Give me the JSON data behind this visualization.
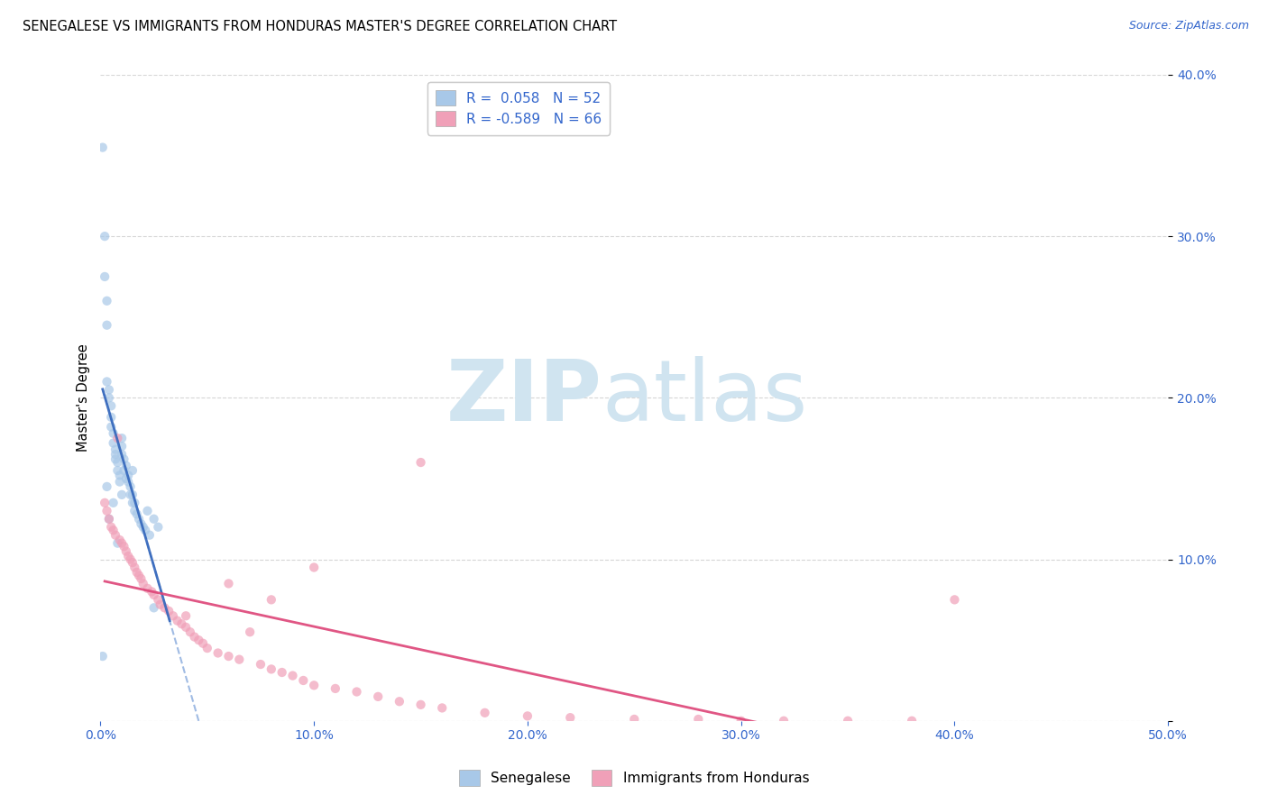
{
  "title": "SENEGALESE VS IMMIGRANTS FROM HONDURAS MASTER'S DEGREE CORRELATION CHART",
  "source": "Source: ZipAtlas.com",
  "ylabel": "Master's Degree",
  "xlim": [
    0.0,
    0.5
  ],
  "ylim": [
    0.0,
    0.4
  ],
  "xticks": [
    0.0,
    0.1,
    0.2,
    0.3,
    0.4,
    0.5
  ],
  "yticks": [
    0.0,
    0.1,
    0.2,
    0.3,
    0.4
  ],
  "legend_labels": [
    "Senegalese",
    "Immigrants from Honduras"
  ],
  "R_blue": 0.058,
  "N_blue": 52,
  "R_pink": -0.589,
  "N_pink": 66,
  "blue_color": "#a8c8e8",
  "pink_color": "#f0a0b8",
  "blue_line_color": "#3366bb",
  "blue_dash_color": "#88aadd",
  "pink_line_color": "#dd4477",
  "scatter_alpha": 0.7,
  "scatter_size": 55,
  "watermark_zip": "ZIP",
  "watermark_atlas": "atlas",
  "watermark_color": "#d0e4f0",
  "blue_x": [
    0.001,
    0.001,
    0.002,
    0.002,
    0.003,
    0.003,
    0.003,
    0.004,
    0.004,
    0.005,
    0.005,
    0.005,
    0.006,
    0.006,
    0.007,
    0.007,
    0.007,
    0.008,
    0.008,
    0.009,
    0.009,
    0.01,
    0.01,
    0.01,
    0.011,
    0.011,
    0.012,
    0.012,
    0.013,
    0.013,
    0.014,
    0.014,
    0.015,
    0.015,
    0.016,
    0.016,
    0.017,
    0.018,
    0.019,
    0.02,
    0.021,
    0.022,
    0.023,
    0.025,
    0.027,
    0.003,
    0.004,
    0.006,
    0.008,
    0.01,
    0.015,
    0.025
  ],
  "blue_y": [
    0.355,
    0.04,
    0.3,
    0.275,
    0.26,
    0.245,
    0.21,
    0.205,
    0.2,
    0.195,
    0.188,
    0.182,
    0.178,
    0.172,
    0.168,
    0.165,
    0.162,
    0.16,
    0.155,
    0.152,
    0.148,
    0.17,
    0.165,
    0.14,
    0.162,
    0.155,
    0.158,
    0.15,
    0.152,
    0.148,
    0.145,
    0.14,
    0.14,
    0.135,
    0.135,
    0.13,
    0.128,
    0.125,
    0.122,
    0.12,
    0.118,
    0.13,
    0.115,
    0.125,
    0.12,
    0.145,
    0.125,
    0.135,
    0.11,
    0.175,
    0.155,
    0.07
  ],
  "pink_x": [
    0.002,
    0.003,
    0.004,
    0.005,
    0.006,
    0.007,
    0.008,
    0.009,
    0.01,
    0.011,
    0.012,
    0.013,
    0.014,
    0.015,
    0.016,
    0.017,
    0.018,
    0.019,
    0.02,
    0.022,
    0.024,
    0.025,
    0.027,
    0.028,
    0.03,
    0.032,
    0.034,
    0.036,
    0.038,
    0.04,
    0.042,
    0.044,
    0.046,
    0.048,
    0.05,
    0.055,
    0.06,
    0.065,
    0.07,
    0.075,
    0.08,
    0.085,
    0.09,
    0.095,
    0.1,
    0.11,
    0.12,
    0.13,
    0.14,
    0.15,
    0.16,
    0.18,
    0.2,
    0.22,
    0.25,
    0.28,
    0.3,
    0.32,
    0.35,
    0.38,
    0.04,
    0.06,
    0.08,
    0.1,
    0.15,
    0.4
  ],
  "pink_y": [
    0.135,
    0.13,
    0.125,
    0.12,
    0.118,
    0.115,
    0.175,
    0.112,
    0.11,
    0.108,
    0.105,
    0.102,
    0.1,
    0.098,
    0.095,
    0.092,
    0.09,
    0.088,
    0.085,
    0.082,
    0.08,
    0.078,
    0.075,
    0.072,
    0.07,
    0.068,
    0.065,
    0.062,
    0.06,
    0.058,
    0.055,
    0.052,
    0.05,
    0.048,
    0.045,
    0.042,
    0.04,
    0.038,
    0.055,
    0.035,
    0.032,
    0.03,
    0.028,
    0.025,
    0.022,
    0.02,
    0.018,
    0.015,
    0.012,
    0.01,
    0.008,
    0.005,
    0.003,
    0.002,
    0.001,
    0.001,
    0.0,
    0.0,
    0.0,
    0.0,
    0.065,
    0.085,
    0.075,
    0.095,
    0.16,
    0.075
  ]
}
